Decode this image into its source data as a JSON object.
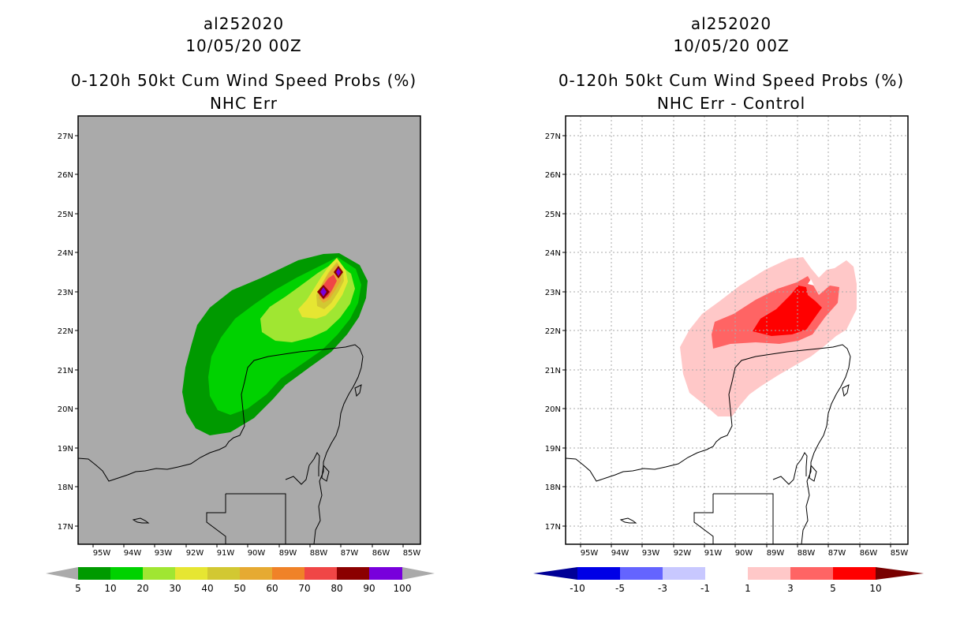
{
  "left": {
    "title_line1": "al252020",
    "title_line2": "10/05/20 00Z",
    "title_line3": "0-120h 50kt Cum Wind Speed Probs (%)",
    "title_line4": "NHC Err",
    "colorbar": {
      "labels": [
        "5",
        "10",
        "20",
        "30",
        "40",
        "50",
        "60",
        "70",
        "80",
        "90",
        "100"
      ],
      "colors": [
        "#009a00",
        "#00d200",
        "#a0e632",
        "#e6e632",
        "#d2c832",
        "#e6aa32",
        "#f08228",
        "#f04646",
        "#8b0000",
        "#7800dc"
      ],
      "under_color": "#aaaaaa",
      "over_color": "#aaaaaa"
    },
    "background_color": "#aaaaaa"
  },
  "right": {
    "title_line1": "al252020",
    "title_line2": "10/05/20 00Z",
    "title_line3": "0-120h 50kt Cum Wind Speed Probs (%)",
    "title_line4": "NHC Err - Control",
    "colorbar": {
      "labels": [
        "-10",
        "-5",
        "-3",
        "-1",
        "1",
        "3",
        "5",
        "10"
      ],
      "colors": [
        "#0000e6",
        "#6464ff",
        "#c8c8ff",
        "#ffffff",
        "#ffc8c8",
        "#ff6464",
        "#ff0000"
      ],
      "under_color": "#000096",
      "over_color": "#780000"
    },
    "background_color": "#ffffff"
  },
  "axes": {
    "lat_labels": [
      "27N",
      "26N",
      "25N",
      "24N",
      "23N",
      "22N",
      "21N",
      "20N",
      "19N",
      "18N",
      "17N"
    ],
    "lon_labels": [
      "95W",
      "94W",
      "93W",
      "92W",
      "91W",
      "90W",
      "89W",
      "88W",
      "87W",
      "86W",
      "85W"
    ]
  }
}
